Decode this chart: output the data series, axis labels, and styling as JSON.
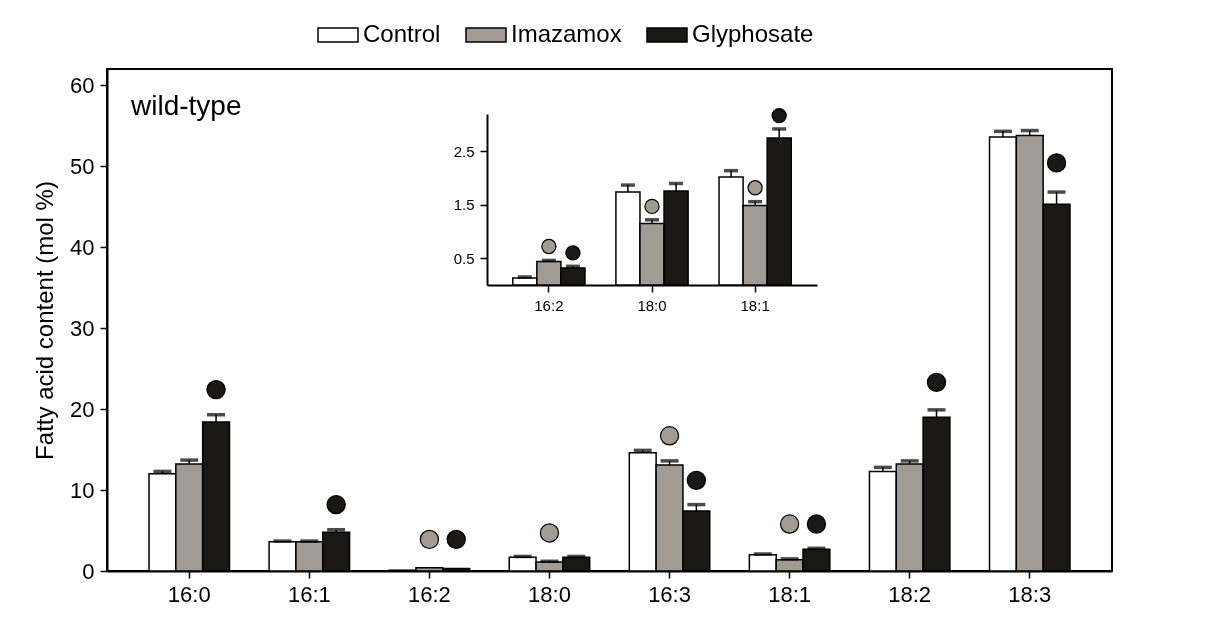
{
  "chart_data": [
    {
      "type": "bar",
      "annotations": [
        "wild-type"
      ],
      "ylabel": "Fatty acid content (mol %)",
      "categories": [
        "16:0",
        "16:1",
        "16:2",
        "18:0",
        "16:3",
        "18:1",
        "18:2",
        "18:3"
      ],
      "series": [
        {
          "name": "Control",
          "color": "#ffffff",
          "values": [
            12,
            3.6,
            0.1,
            1.7,
            14.6,
            2.0,
            12.3,
            53.6
          ],
          "errors": [
            [
              12,
              12.3
            ],
            [
              3.6,
              3.7
            ],
            null,
            [
              1.7,
              1.8
            ],
            [
              14.6,
              14.9
            ],
            [
              2.0,
              2.1
            ],
            [
              12.3,
              12.8
            ],
            [
              53.6,
              54.3
            ]
          ]
        },
        {
          "name": "Imazamox",
          "color": "#a19b96",
          "values": [
            13.2,
            3.6,
            0.4,
            1.1,
            13.1,
            1.4,
            13.2,
            53.8
          ],
          "errors": [
            [
              13.2,
              13.7
            ],
            [
              3.6,
              3.7
            ],
            null,
            [
              1.1,
              1.2
            ],
            [
              13.1,
              13.6
            ],
            [
              1.4,
              1.5
            ],
            [
              13.2,
              13.6
            ],
            [
              53.8,
              54.4
            ]
          ]
        },
        {
          "name": "Glyphosate",
          "color": "#191815",
          "values": [
            18.4,
            4.8,
            0.3,
            1.7,
            7.4,
            2.7,
            19.0,
            45.3
          ],
          "errors": [
            [
              18.4,
              19.3
            ],
            [
              4.8,
              5.1
            ],
            null,
            [
              1.7,
              1.8
            ],
            [
              7.4,
              8.2
            ],
            [
              2.7,
              2.8
            ],
            [
              19.0,
              19.9
            ],
            [
              45.3,
              46.8
            ]
          ]
        },
        {
          "type": "scatter",
          "color": "#a19b96",
          "x": [
            "16:2",
            "18:0",
            "16:3",
            "18:1"
          ],
          "values": [
            3.9,
            4.7,
            16.7,
            5.8
          ]
        },
        {
          "type": "scatter",
          "color": "#191815",
          "x": [
            "16:0",
            "16:1",
            "16:2",
            "16:3",
            "18:1",
            "18:2",
            "18:3"
          ],
          "values": [
            22.4,
            8.2,
            3.9,
            11.2,
            5.8,
            23.3,
            50.4
          ]
        }
      ],
      "ylim": [
        0,
        62
      ],
      "yticks": [
        0,
        10,
        20,
        30,
        40,
        50,
        60
      ],
      "grid": false,
      "legend": "top",
      "marker": "circle"
    },
    {
      "type": "bar",
      "categories": [
        "16:2",
        "18:0",
        "18:1"
      ],
      "series": [
        {
          "color": "#ffffff",
          "values": [
            0.13,
            1.74,
            2.02
          ],
          "errors": [
            [
              0.13,
              0.15
            ],
            [
              1.74,
              1.87
            ],
            [
              2.02,
              2.14
            ]
          ]
        },
        {
          "color": "#a19b96",
          "values": [
            0.44,
            1.15,
            1.49
          ],
          "errors": [
            [
              0.44,
              0.46
            ],
            [
              1.15,
              1.22
            ],
            [
              1.49,
              1.56
            ]
          ]
        },
        {
          "color": "#191815",
          "values": [
            0.32,
            1.76,
            2.75
          ],
          "errors": [
            [
              0.32,
              0.35
            ],
            [
              1.76,
              1.9
            ],
            [
              2.75,
              2.92
            ]
          ]
        },
        {
          "type": "scatter",
          "color": "#a19b96",
          "x": [
            "16:2",
            "18:0",
            "18:1"
          ],
          "values": [
            0.72,
            1.47,
            1.82
          ]
        },
        {
          "type": "scatter",
          "color": "#191815",
          "x": [
            "16:2",
            "18:1"
          ],
          "values": [
            0.6,
            3.17
          ]
        }
      ],
      "ylim": [
        0,
        3.2
      ],
      "yticks": [
        0.5,
        1.5,
        2.5
      ],
      "grid": false,
      "legend": false,
      "marker": "circle"
    }
  ]
}
